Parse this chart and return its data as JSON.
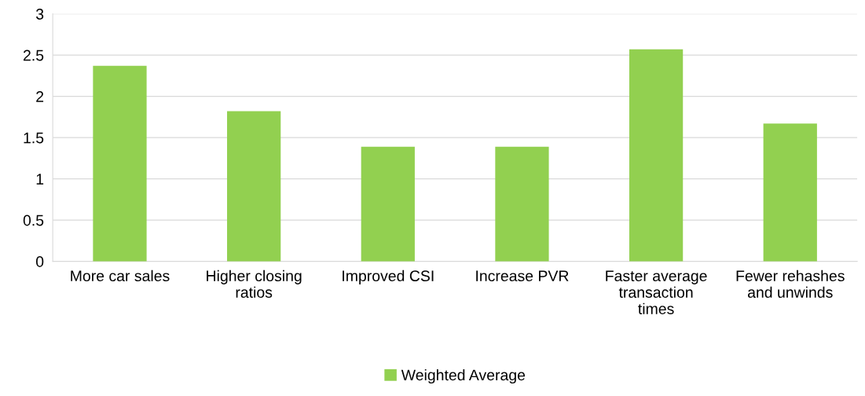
{
  "chart_data": {
    "type": "bar",
    "categories": [
      "More car sales",
      "Higher closing\nratios",
      "Improved CSI",
      "Increase PVR",
      "Faster average\ntransaction\ntimes",
      "Fewer rehashes\nand unwinds"
    ],
    "series": [
      {
        "name": "Weighted Average",
        "color": "#92d050",
        "values": [
          2.37,
          1.82,
          1.39,
          1.39,
          2.57,
          1.67
        ]
      }
    ],
    "ylim": [
      0,
      3
    ],
    "yticks": [
      0,
      0.5,
      1,
      1.5,
      2,
      2.5,
      3
    ],
    "grid": "y",
    "legend": "bottom"
  }
}
